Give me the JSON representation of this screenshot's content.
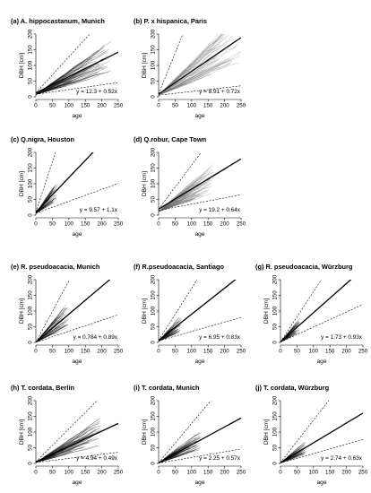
{
  "chart_data": [
    {
      "type": "line",
      "title": "(a) A. hippocastanum, Munich",
      "xlabel": "age",
      "ylabel": "DBH [cm]",
      "xlim": [
        0,
        250
      ],
      "ylim": [
        0,
        200
      ],
      "x_ticks": [
        0,
        50,
        100,
        150,
        200,
        250
      ],
      "y_ticks": [
        0,
        50,
        100,
        150,
        200
      ],
      "equation": "y = 12.3 + 0.52x",
      "intercept": 12.3,
      "slope": 0.52,
      "upper_dashed": [
        12.3,
        1.15
      ],
      "lower_dashed": [
        8,
        0.15
      ],
      "cloud_max_age": 230,
      "cloud_color": "#111111"
    },
    {
      "type": "line",
      "title": "(b) P. x hispanica, Paris",
      "xlabel": "age",
      "ylabel": "DBH [cm]",
      "xlim": [
        0,
        250
      ],
      "ylim": [
        0,
        200
      ],
      "x_ticks": [
        0,
        50,
        100,
        150,
        200,
        250
      ],
      "y_ticks": [
        0,
        50,
        100,
        150,
        200
      ],
      "equation": "y = 8.91 + 0.72x",
      "intercept": 8.91,
      "slope": 0.72,
      "upper_dashed": [
        8.91,
        2.6
      ],
      "lower_dashed": [
        5,
        0.12
      ],
      "cloud_max_age": 250,
      "cloud_color": "#777777"
    },
    {
      "type": "line",
      "title": "(c) Q.nigra, Houston",
      "xlabel": "age",
      "ylabel": "DBH [cm]",
      "xlim": [
        0,
        250
      ],
      "ylim": [
        0,
        200
      ],
      "x_ticks": [
        0,
        50,
        100,
        150,
        200,
        250
      ],
      "y_ticks": [
        0,
        50,
        100,
        150,
        200
      ],
      "equation": "y = 9.57 + 1.1x",
      "intercept": 9.57,
      "slope": 1.1,
      "upper_dashed": [
        9.57,
        3.2
      ],
      "lower_dashed": [
        6,
        0.38
      ],
      "cloud_max_age": 65,
      "cloud_color": "#111111"
    },
    {
      "type": "line",
      "title": "(d) Q.robur, Cape Town",
      "xlabel": "age",
      "ylabel": "DBH [cm]",
      "xlim": [
        0,
        250
      ],
      "ylim": [
        0,
        200
      ],
      "x_ticks": [
        0,
        50,
        100,
        150,
        200,
        250
      ],
      "y_ticks": [
        0,
        50,
        100,
        150,
        200
      ],
      "equation": "y = 19.2 + 0.64x",
      "intercept": 19.2,
      "slope": 0.64,
      "upper_dashed": [
        19.2,
        1.4
      ],
      "lower_dashed": [
        15,
        0.2
      ],
      "cloud_max_age": 180,
      "cloud_color": "#666666"
    },
    {
      "type": "line",
      "title": "(e) R. pseudoacacia, Munich",
      "xlabel": "age",
      "ylabel": "DBH [cm]",
      "xlim": [
        0,
        250
      ],
      "ylim": [
        0,
        200
      ],
      "x_ticks": [
        0,
        50,
        100,
        150,
        200,
        250
      ],
      "y_ticks": [
        0,
        50,
        100,
        150,
        200
      ],
      "equation": "y = 0.784 + 0.89x",
      "intercept": 0.784,
      "slope": 0.89,
      "upper_dashed": [
        0.784,
        1.95
      ],
      "lower_dashed": [
        0.5,
        0.35
      ],
      "cloud_max_age": 100,
      "cloud_color": "#111111"
    },
    {
      "type": "line",
      "title": "(f) R.pseudoacacia, Santiago",
      "xlabel": "age",
      "ylabel": "DBH [cm]",
      "xlim": [
        0,
        250
      ],
      "ylim": [
        0,
        200
      ],
      "x_ticks": [
        0,
        50,
        100,
        150,
        200,
        250
      ],
      "y_ticks": [
        0,
        50,
        100,
        150,
        200
      ],
      "equation": "y = 6.95 + 0.83x",
      "intercept": 6.95,
      "slope": 0.83,
      "upper_dashed": [
        6.95,
        1.65
      ],
      "lower_dashed": [
        5,
        0.3
      ],
      "cloud_max_age": 70,
      "cloud_color": "#111111"
    },
    {
      "type": "line",
      "title": "(g) R. pseudoacacia, Würzburg",
      "xlabel": "age",
      "ylabel": "DBH [cm]",
      "xlim": [
        0,
        250
      ],
      "ylim": [
        0,
        200
      ],
      "x_ticks": [
        0,
        50,
        100,
        150,
        200,
        250
      ],
      "y_ticks": [
        0,
        50,
        100,
        150,
        200
      ],
      "equation": "y = 1.73 + 0.93x",
      "intercept": 1.73,
      "slope": 0.93,
      "upper_dashed": [
        1.73,
        1.6
      ],
      "lower_dashed": [
        1,
        0.48
      ],
      "cloud_max_age": 60,
      "cloud_color": "#111111"
    },
    {
      "type": "line",
      "title": "(h) T. cordata, Berlin",
      "xlabel": "age",
      "ylabel": "DBH [cm]",
      "xlim": [
        0,
        250
      ],
      "ylim": [
        0,
        200
      ],
      "x_ticks": [
        0,
        50,
        100,
        150,
        200,
        250
      ],
      "y_ticks": [
        0,
        50,
        100,
        150,
        200
      ],
      "equation": "y = 4.94 + 0.49x",
      "intercept": 4.94,
      "slope": 0.49,
      "upper_dashed": [
        4.94,
        1.05
      ],
      "lower_dashed": [
        3,
        0.13
      ],
      "cloud_max_age": 200,
      "cloud_color": "#111111"
    },
    {
      "type": "line",
      "title": "(i) T. cordata, Munich",
      "xlabel": "age",
      "ylabel": "DBH [cm]",
      "xlim": [
        0,
        250
      ],
      "ylim": [
        0,
        200
      ],
      "x_ticks": [
        0,
        50,
        100,
        150,
        200,
        250
      ],
      "y_ticks": [
        0,
        50,
        100,
        150,
        200
      ],
      "equation": "y = 2.25 + 0.57x",
      "intercept": 2.25,
      "slope": 0.57,
      "upper_dashed": [
        2.25,
        1.25
      ],
      "lower_dashed": [
        1,
        0.18
      ],
      "cloud_max_age": 130,
      "cloud_color": "#111111"
    },
    {
      "type": "line",
      "title": "(j) T. cordata, Würzburg",
      "xlabel": "age",
      "ylabel": "DBH [cm]",
      "xlim": [
        0,
        250
      ],
      "ylim": [
        0,
        200
      ],
      "x_ticks": [
        0,
        50,
        100,
        150,
        200,
        250
      ],
      "y_ticks": [
        0,
        50,
        100,
        150,
        200
      ],
      "equation": "y = 2.74 + 0.63x",
      "intercept": 2.74,
      "slope": 0.63,
      "upper_dashed": [
        2.74,
        1.35
      ],
      "lower_dashed": [
        1.5,
        0.3
      ],
      "cloud_max_age": 80,
      "cloud_color": "#111111"
    }
  ]
}
